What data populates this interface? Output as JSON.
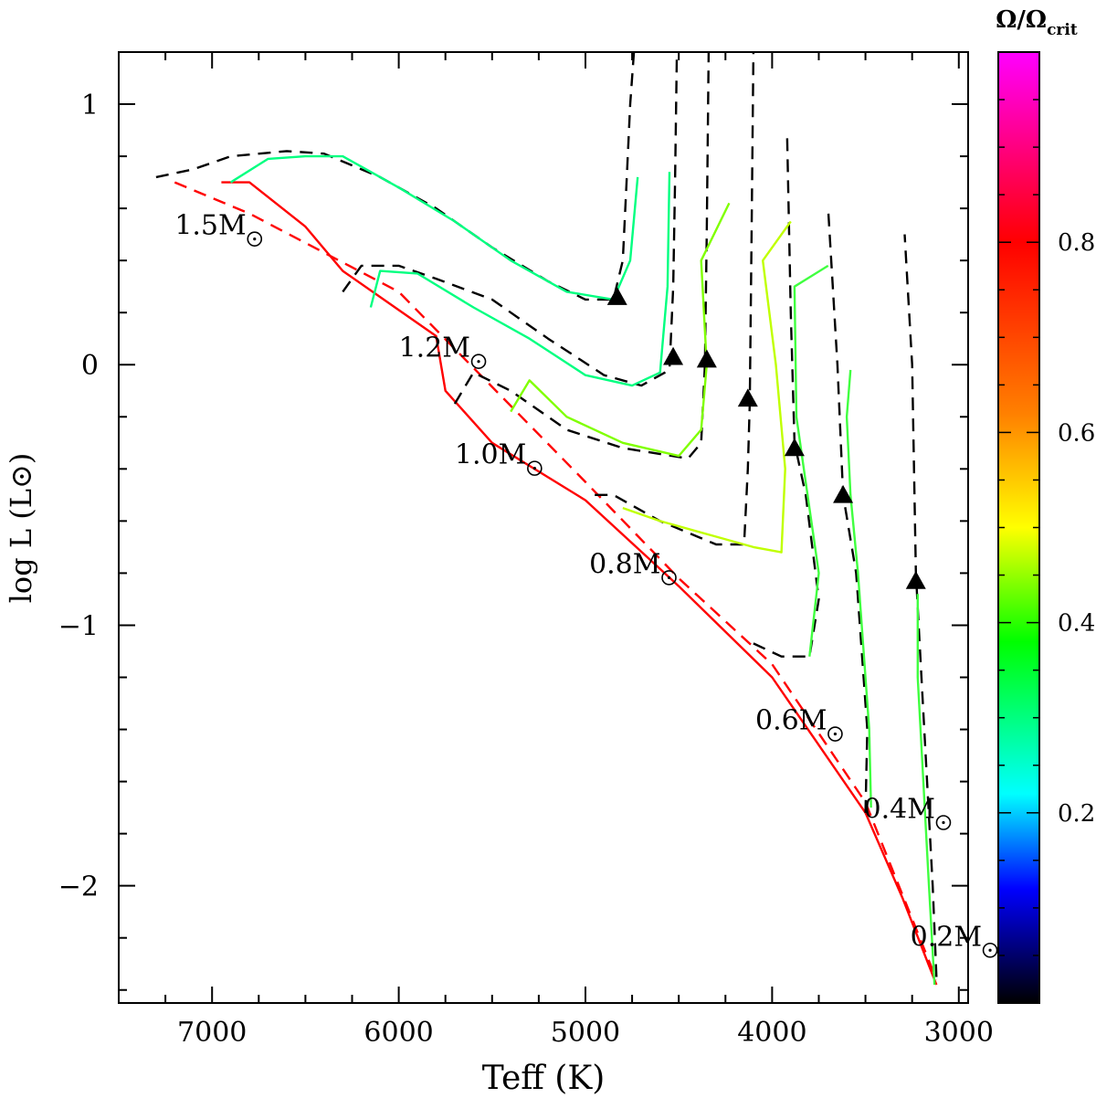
{
  "chart_data": {
    "type": "line",
    "title": "",
    "xlabel": "Teff (K)",
    "ylabel": "log L (L⊙)",
    "xlim": [
      7500,
      2950
    ],
    "ylim": [
      -2.45,
      1.2
    ],
    "x_ticks": [
      7000,
      6000,
      5000,
      4000,
      3000
    ],
    "y_ticks": [
      1,
      0,
      -1,
      -2
    ],
    "x_tick_labels": [
      "7000",
      "6000",
      "5000",
      "4000",
      "3000"
    ],
    "y_tick_labels": [
      "1",
      "0",
      "−1",
      "−2"
    ],
    "colorbar": {
      "title": "Ω/Ωcrit",
      "title_main": "Ω/Ω",
      "title_sub": "crit",
      "range": [
        0.0,
        1.0
      ],
      "ticks": [
        0.2,
        0.4,
        0.6,
        0.8
      ],
      "tick_labels": [
        "0.2",
        "0.4",
        "0.6",
        "0.8"
      ],
      "colormap": [
        "#000000",
        "#0000ff",
        "#00ffff",
        "#00ff00",
        "#ffff00",
        "#ff8000",
        "#ff0000",
        "#ff00ff"
      ]
    },
    "mass_labels": [
      {
        "text": "1.5M",
        "teff": 7200,
        "logL": 0.5
      },
      {
        "text": "1.2M",
        "teff": 6000,
        "logL": 0.03
      },
      {
        "text": "1.0M",
        "teff": 5700,
        "logL": -0.38
      },
      {
        "text": "0.8M",
        "teff": 4980,
        "logL": -0.8
      },
      {
        "text": "0.6M",
        "teff": 4090,
        "logL": -1.4
      },
      {
        "text": "0.4M",
        "teff": 3510,
        "logL": -1.74
      },
      {
        "text": "0.2M",
        "teff": 3260,
        "logL": -2.23
      }
    ],
    "series": [
      {
        "name": "ZAMS (solid)",
        "color": "#ff0000",
        "style": "solid",
        "points": [
          [
            6950,
            0.7
          ],
          [
            6800,
            0.7
          ],
          [
            6500,
            0.53
          ],
          [
            6300,
            0.36
          ],
          [
            6000,
            0.21
          ],
          [
            5800,
            0.11
          ],
          [
            5750,
            -0.1
          ],
          [
            5500,
            -0.3
          ],
          [
            5000,
            -0.52
          ],
          [
            4500,
            -0.85
          ],
          [
            4000,
            -1.2
          ],
          [
            3500,
            -1.72
          ],
          [
            3300,
            -2.05
          ],
          [
            3120,
            -2.38
          ]
        ]
      },
      {
        "name": "ZAMS (dashed)",
        "color": "#ff0000",
        "style": "dashed",
        "points": [
          [
            7200,
            0.7
          ],
          [
            6800,
            0.58
          ],
          [
            6000,
            0.28
          ],
          [
            5000,
            -0.45
          ],
          [
            4500,
            -0.82
          ],
          [
            4000,
            -1.15
          ],
          [
            3500,
            -1.68
          ],
          [
            3120,
            -2.36
          ]
        ]
      },
      {
        "name": "1.5M non-rotating",
        "color": "#000000",
        "style": "dashed",
        "points": [
          [
            7300,
            0.72
          ],
          [
            7100,
            0.75
          ],
          [
            6900,
            0.8
          ],
          [
            6600,
            0.82
          ],
          [
            6400,
            0.81
          ],
          [
            6100,
            0.72
          ],
          [
            5800,
            0.6
          ],
          [
            5500,
            0.45
          ],
          [
            5200,
            0.32
          ],
          [
            5000,
            0.25
          ],
          [
            4850,
            0.25
          ],
          [
            4800,
            0.4
          ],
          [
            4780,
            0.7
          ],
          [
            4760,
            1.0
          ],
          [
            4740,
            1.2
          ]
        ]
      },
      {
        "name": "1.2M non-rotating",
        "color": "#000000",
        "style": "dashed",
        "points": [
          [
            6300,
            0.28
          ],
          [
            6200,
            0.38
          ],
          [
            6000,
            0.38
          ],
          [
            5800,
            0.33
          ],
          [
            5500,
            0.25
          ],
          [
            5200,
            0.1
          ],
          [
            4900,
            -0.04
          ],
          [
            4700,
            -0.08
          ],
          [
            4550,
            -0.02
          ],
          [
            4530,
            0.3
          ],
          [
            4520,
            0.7
          ],
          [
            4510,
            1.2
          ]
        ]
      },
      {
        "name": "1.0M non-rotating",
        "color": "#000000",
        "style": "dashed",
        "points": [
          [
            5700,
            -0.15
          ],
          [
            5600,
            -0.03
          ],
          [
            5400,
            -0.1
          ],
          [
            5100,
            -0.25
          ],
          [
            4800,
            -0.32
          ],
          [
            4450,
            -0.36
          ],
          [
            4380,
            -0.3
          ],
          [
            4360,
            0.0
          ],
          [
            4350,
            0.5
          ],
          [
            4340,
            1.2
          ]
        ]
      },
      {
        "name": "0.8M non-rotating",
        "color": "#000000",
        "style": "dashed",
        "points": [
          [
            4950,
            -0.5
          ],
          [
            4850,
            -0.5
          ],
          [
            4600,
            -0.6
          ],
          [
            4300,
            -0.69
          ],
          [
            4150,
            -0.69
          ],
          [
            4130,
            -0.4
          ],
          [
            4120,
            -0.15
          ],
          [
            4110,
            0.5
          ],
          [
            4100,
            1.2
          ]
        ]
      },
      {
        "name": "0.6M non-rotating",
        "color": "#000000",
        "style": "dashed",
        "points": [
          [
            4100,
            -1.07
          ],
          [
            3950,
            -1.12
          ],
          [
            3800,
            -1.12
          ],
          [
            3750,
            -0.9
          ],
          [
            3820,
            -0.5
          ],
          [
            3880,
            -0.3
          ],
          [
            3900,
            0.2
          ],
          [
            3920,
            0.9
          ]
        ]
      },
      {
        "name": "0.4M non-rotating",
        "color": "#000000",
        "style": "dashed",
        "points": [
          [
            3500,
            -1.72
          ],
          [
            3490,
            -1.4
          ],
          [
            3550,
            -0.8
          ],
          [
            3620,
            -0.5
          ],
          [
            3650,
            0.0
          ],
          [
            3700,
            0.6
          ]
        ]
      },
      {
        "name": "0.2M non-rotating",
        "color": "#000000",
        "style": "dashed",
        "points": [
          [
            3120,
            -2.35
          ],
          [
            3140,
            -2.0
          ],
          [
            3200,
            -1.2
          ],
          [
            3230,
            -0.8
          ],
          [
            3250,
            0.0
          ],
          [
            3290,
            0.5
          ]
        ]
      },
      {
        "name": "1.5M rotating",
        "color": "#00ff80",
        "style": "solid",
        "points": [
          [
            6900,
            0.7
          ],
          [
            6700,
            0.79
          ],
          [
            6500,
            0.8
          ],
          [
            6300,
            0.8
          ],
          [
            6000,
            0.68
          ],
          [
            5700,
            0.55
          ],
          [
            5400,
            0.4
          ],
          [
            5100,
            0.28
          ],
          [
            4850,
            0.25
          ],
          [
            4760,
            0.4
          ],
          [
            4720,
            0.72
          ]
        ]
      },
      {
        "name": "1.2M rotating",
        "color": "#00ff80",
        "style": "solid",
        "points": [
          [
            6150,
            0.22
          ],
          [
            6100,
            0.36
          ],
          [
            5900,
            0.35
          ],
          [
            5600,
            0.22
          ],
          [
            5300,
            0.1
          ],
          [
            5000,
            -0.04
          ],
          [
            4750,
            -0.08
          ],
          [
            4600,
            -0.03
          ],
          [
            4560,
            0.3
          ],
          [
            4550,
            0.74
          ]
        ]
      },
      {
        "name": "1.0M rotating",
        "color": "#80ff00",
        "style": "solid",
        "points": [
          [
            5400,
            -0.18
          ],
          [
            5300,
            -0.06
          ],
          [
            5100,
            -0.2
          ],
          [
            4800,
            -0.3
          ],
          [
            4500,
            -0.35
          ],
          [
            4380,
            -0.25
          ],
          [
            4350,
            0.0
          ],
          [
            4380,
            0.4
          ],
          [
            4230,
            0.62
          ]
        ]
      },
      {
        "name": "0.8M rotating",
        "color": "#c0ff00",
        "style": "solid",
        "points": [
          [
            4800,
            -0.55
          ],
          [
            4600,
            -0.6
          ],
          [
            4300,
            -0.66
          ],
          [
            4100,
            -0.7
          ],
          [
            3950,
            -0.72
          ],
          [
            3930,
            -0.4
          ],
          [
            3980,
            0.0
          ],
          [
            4050,
            0.4
          ],
          [
            3900,
            0.55
          ]
        ]
      },
      {
        "name": "0.6M rotating",
        "color": "#40ff40",
        "style": "solid",
        "points": [
          [
            3800,
            -1.12
          ],
          [
            3750,
            -0.8
          ],
          [
            3830,
            -0.4
          ],
          [
            3870,
            -0.2
          ],
          [
            3880,
            0.3
          ],
          [
            3700,
            0.38
          ]
        ]
      },
      {
        "name": "0.4M rotating",
        "color": "#40ff40",
        "style": "solid",
        "points": [
          [
            3470,
            -1.7
          ],
          [
            3480,
            -1.4
          ],
          [
            3540,
            -0.8
          ],
          [
            3580,
            -0.5
          ],
          [
            3600,
            -0.2
          ],
          [
            3580,
            -0.02
          ]
        ]
      },
      {
        "name": "0.2M rotating",
        "color": "#40ff40",
        "style": "solid",
        "points": [
          [
            3130,
            -2.38
          ],
          [
            3160,
            -2.0
          ],
          [
            3220,
            -1.2
          ],
          [
            3220,
            -0.88
          ]
        ]
      }
    ],
    "triangle_markers": [
      {
        "teff": 4830,
        "logL": 0.26
      },
      {
        "teff": 4530,
        "logL": 0.03
      },
      {
        "teff": 4350,
        "logL": 0.02
      },
      {
        "teff": 4130,
        "logL": -0.13
      },
      {
        "teff": 3880,
        "logL": -0.32
      },
      {
        "teff": 3620,
        "logL": -0.5
      },
      {
        "teff": 3230,
        "logL": -0.83
      }
    ]
  }
}
